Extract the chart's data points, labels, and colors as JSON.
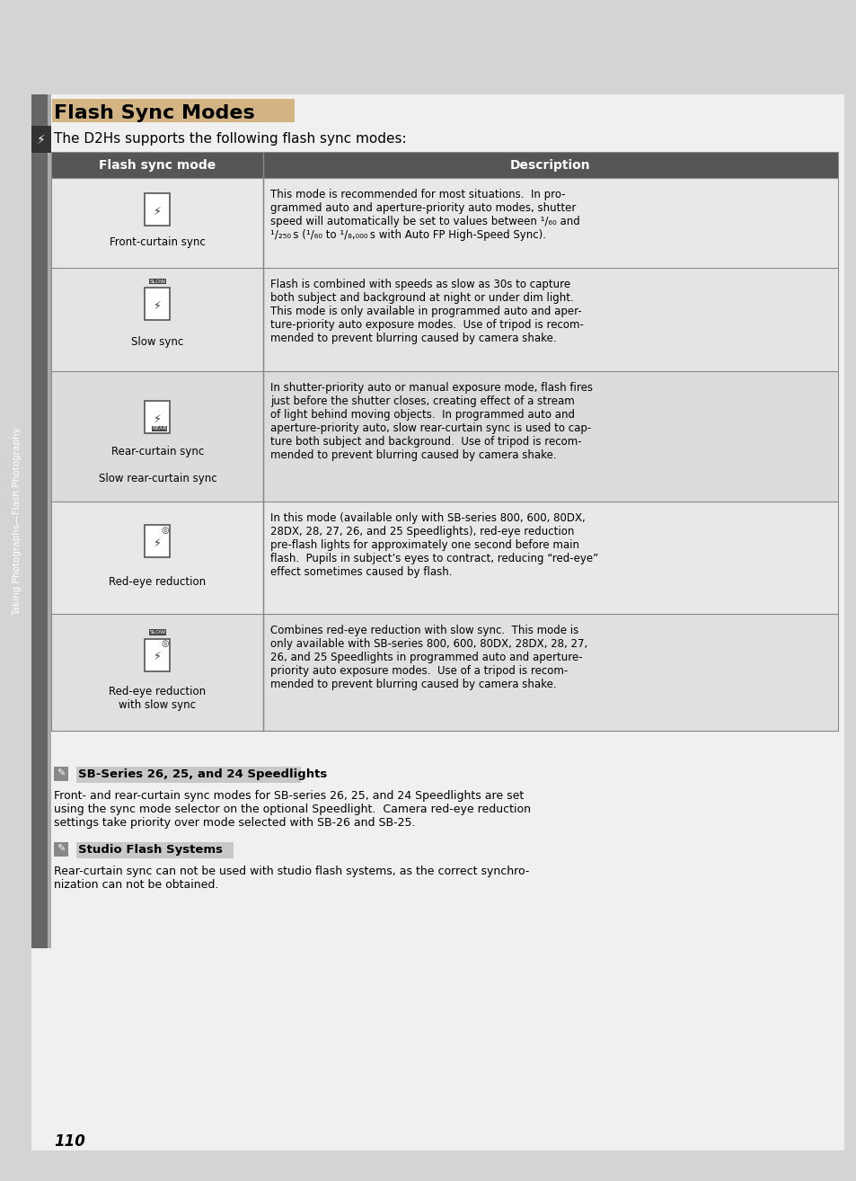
{
  "page_bg": "#d4d4d4",
  "content_bg": "#f0f0f0",
  "title": "Flash Sync Modes",
  "subtitle": "The D2Hs supports the following flash sync modes:",
  "table_header": [
    "Flash sync mode",
    "Description"
  ],
  "table_header_bg": "#555555",
  "table_header_color": "#ffffff",
  "table_row_bg": [
    "#e8e8e8",
    "#e8e8e8",
    "#e0e0e0",
    "#e8e8e8",
    "#e0e0e0"
  ],
  "rows": [
    {
      "mode_name": "Front-curtain sync",
      "icon_type": "flash_basic",
      "description": "This mode is recommended for most situations.  In pro-\ngrammed auto and aperture-priority auto modes, shutter\nspeed will automatically be set to values between ¹⁠/⁠₆₀ and\n¹⁠/⁠₂₅₀ s (¹⁠/⁠₆₀ to ¹⁠/⁠₈,⁠₀₀₀ s with Auto FP High-Speed Sync)."
    },
    {
      "mode_name": "Slow sync",
      "icon_type": "flash_slow",
      "description": "Flash is combined with speeds as slow as 30s to capture\nboth subject and background at night or under dim light.\nThis mode is only available in programmed auto and aper-\nture-priority auto exposure modes.  Use of tripod is recom-\nmended to prevent blurring caused by camera shake."
    },
    {
      "mode_name": "Rear-curtain sync\n\nSlow rear-curtain sync",
      "icon_type": "flash_rear",
      "description": "In shutter-priority auto or manual exposure mode, flash fires\njust before the shutter closes, creating effect of a stream\nof light behind moving objects.  In programmed auto and\naperture-priority auto, slow rear-curtain sync is used to cap-\nture both subject and background.  Use of tripod is recom-\nmended to prevent blurring caused by camera shake."
    },
    {
      "mode_name": "Red-eye reduction",
      "icon_type": "flash_redeye",
      "description": "In this mode (available only with SB-series 800, 600, 80DX,\n28DX, 28, 27, 26, and 25 Speedlights), red-eye reduction\npre-flash lights for approximately one second before main\nflash.  Pupils in subject’s eyes to contract, reducing “red-eye”\neffect sometimes caused by flash."
    },
    {
      "mode_name": "Red-eye reduction\nwith slow sync",
      "icon_type": "flash_redeye_slow",
      "description": "Combines red-eye reduction with slow sync.  This mode is\nonly available with SB-series 800, 600, 80DX, 28DX, 28, 27,\n26, and 25 Speedlights in programmed auto and aperture-\npriority auto exposure modes.  Use of a tripod is recom-\nmended to prevent blurring caused by camera shake."
    }
  ],
  "note1_title": "SB-Series 26, 25, and 24 Speedlights",
  "note1_text": "Front- and rear-curtain sync modes for SB-series 26, 25, and 24 Speedlights are set\nusing the sync mode selector on the optional Speedlight.  Camera red-eye reduction\nsettings take priority over mode selected with SB-26 and SB-25.",
  "note2_title": "Studio Flash Systems",
  "note2_text": "Rear-curtain sync can not be used with studio flash systems, as the correct synchro-\nnization can not be obtained.",
  "page_number": "110",
  "sidebar_text": "Taking Photographs—Flash Photography",
  "sidebar_bg": "#555555",
  "sidebar_icon_bg": "#333333"
}
